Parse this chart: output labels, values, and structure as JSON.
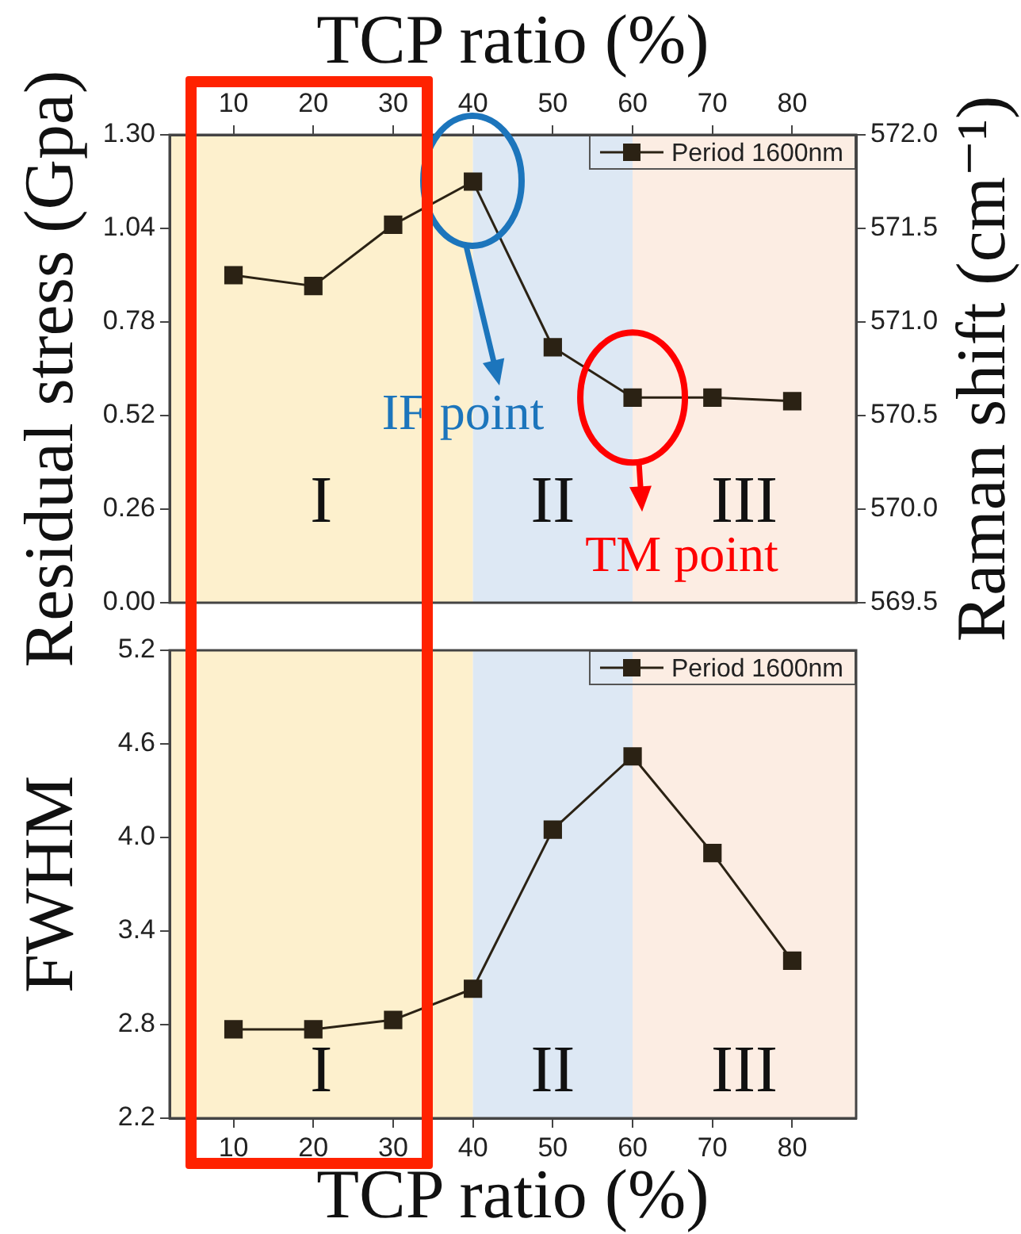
{
  "chart_data": [
    {
      "type": "line",
      "xlabel": "TCP ratio (%)",
      "ylabel": "Residual stress (Gpa)",
      "y2label": "Raman shift (cm⁻¹)",
      "x": [
        10,
        20,
        30,
        40,
        50,
        60,
        70,
        80
      ],
      "xlim": [
        2,
        88
      ],
      "xticks": [
        10,
        20,
        30,
        40,
        50,
        60,
        70,
        80
      ],
      "ylim": [
        0,
        1.3
      ],
      "yticks": [
        {
          "value": 0,
          "label": "0.00"
        },
        0.26,
        0.52,
        0.78,
        1.04,
        {
          "value": 1.3,
          "label": "1.30"
        }
      ],
      "y2lim": [
        569.5,
        572
      ],
      "y2ticks": [
        569.5,
        {
          "value": 570,
          "label": "570.0"
        },
        570.5,
        {
          "value": 571,
          "label": "571.0"
        },
        571.5,
        {
          "value": 572,
          "label": "572.0"
        }
      ],
      "series": [
        {
          "name": "Period 1600nm",
          "color": "#2b2214",
          "values": [
            0.91,
            0.88,
            1.05,
            1.17,
            0.71,
            0.57,
            0.57,
            0.56
          ]
        }
      ],
      "marker": "square",
      "legend": "top right",
      "bands": [
        {
          "axis": "x",
          "from": 2,
          "to": 40,
          "label": "I",
          "color": "#fdf0cd"
        },
        {
          "axis": "x",
          "from": 40,
          "to": 60,
          "label": "II",
          "color": "#dde8f4"
        },
        {
          "axis": "x",
          "from": 60,
          "to": 88,
          "label": "III",
          "color": "#fcede3"
        }
      ],
      "annotations": [
        "IF point",
        {
          "text": "TM point",
          "x": 60,
          "y": 0.57
        }
      ]
    },
    {
      "type": "line",
      "xlabel": "TCP ratio (%)",
      "ylabel": "FWHM",
      "x": [
        10,
        20,
        30,
        40,
        50,
        60,
        70,
        80
      ],
      "xlim": [
        2,
        88
      ],
      "xticks": [
        10,
        20,
        30,
        40,
        50,
        60,
        70,
        80
      ],
      "ylim": [
        2.2,
        5.2
      ],
      "yticks": [
        2.2,
        2.8,
        3.4,
        {
          "value": 4,
          "label": "4.0"
        },
        4.6,
        5.2
      ],
      "series": [
        {
          "name": "Period 1600nm",
          "color": "#2b2214",
          "values": [
            2.77,
            2.77,
            2.83,
            3.03,
            4.05,
            4.52,
            3.9,
            3.21
          ]
        }
      ],
      "marker": "square",
      "legend": "top right",
      "bands": [
        {
          "axis": "x",
          "from": 2,
          "to": 40,
          "label": "I",
          "color": "#fdf0cd"
        },
        {
          "axis": "x",
          "from": 40,
          "to": 60,
          "label": "II",
          "color": "#dde8f4"
        },
        {
          "axis": "x",
          "from": 60,
          "to": 88,
          "label": "III",
          "color": "#fcede3"
        }
      ]
    }
  ]
}
